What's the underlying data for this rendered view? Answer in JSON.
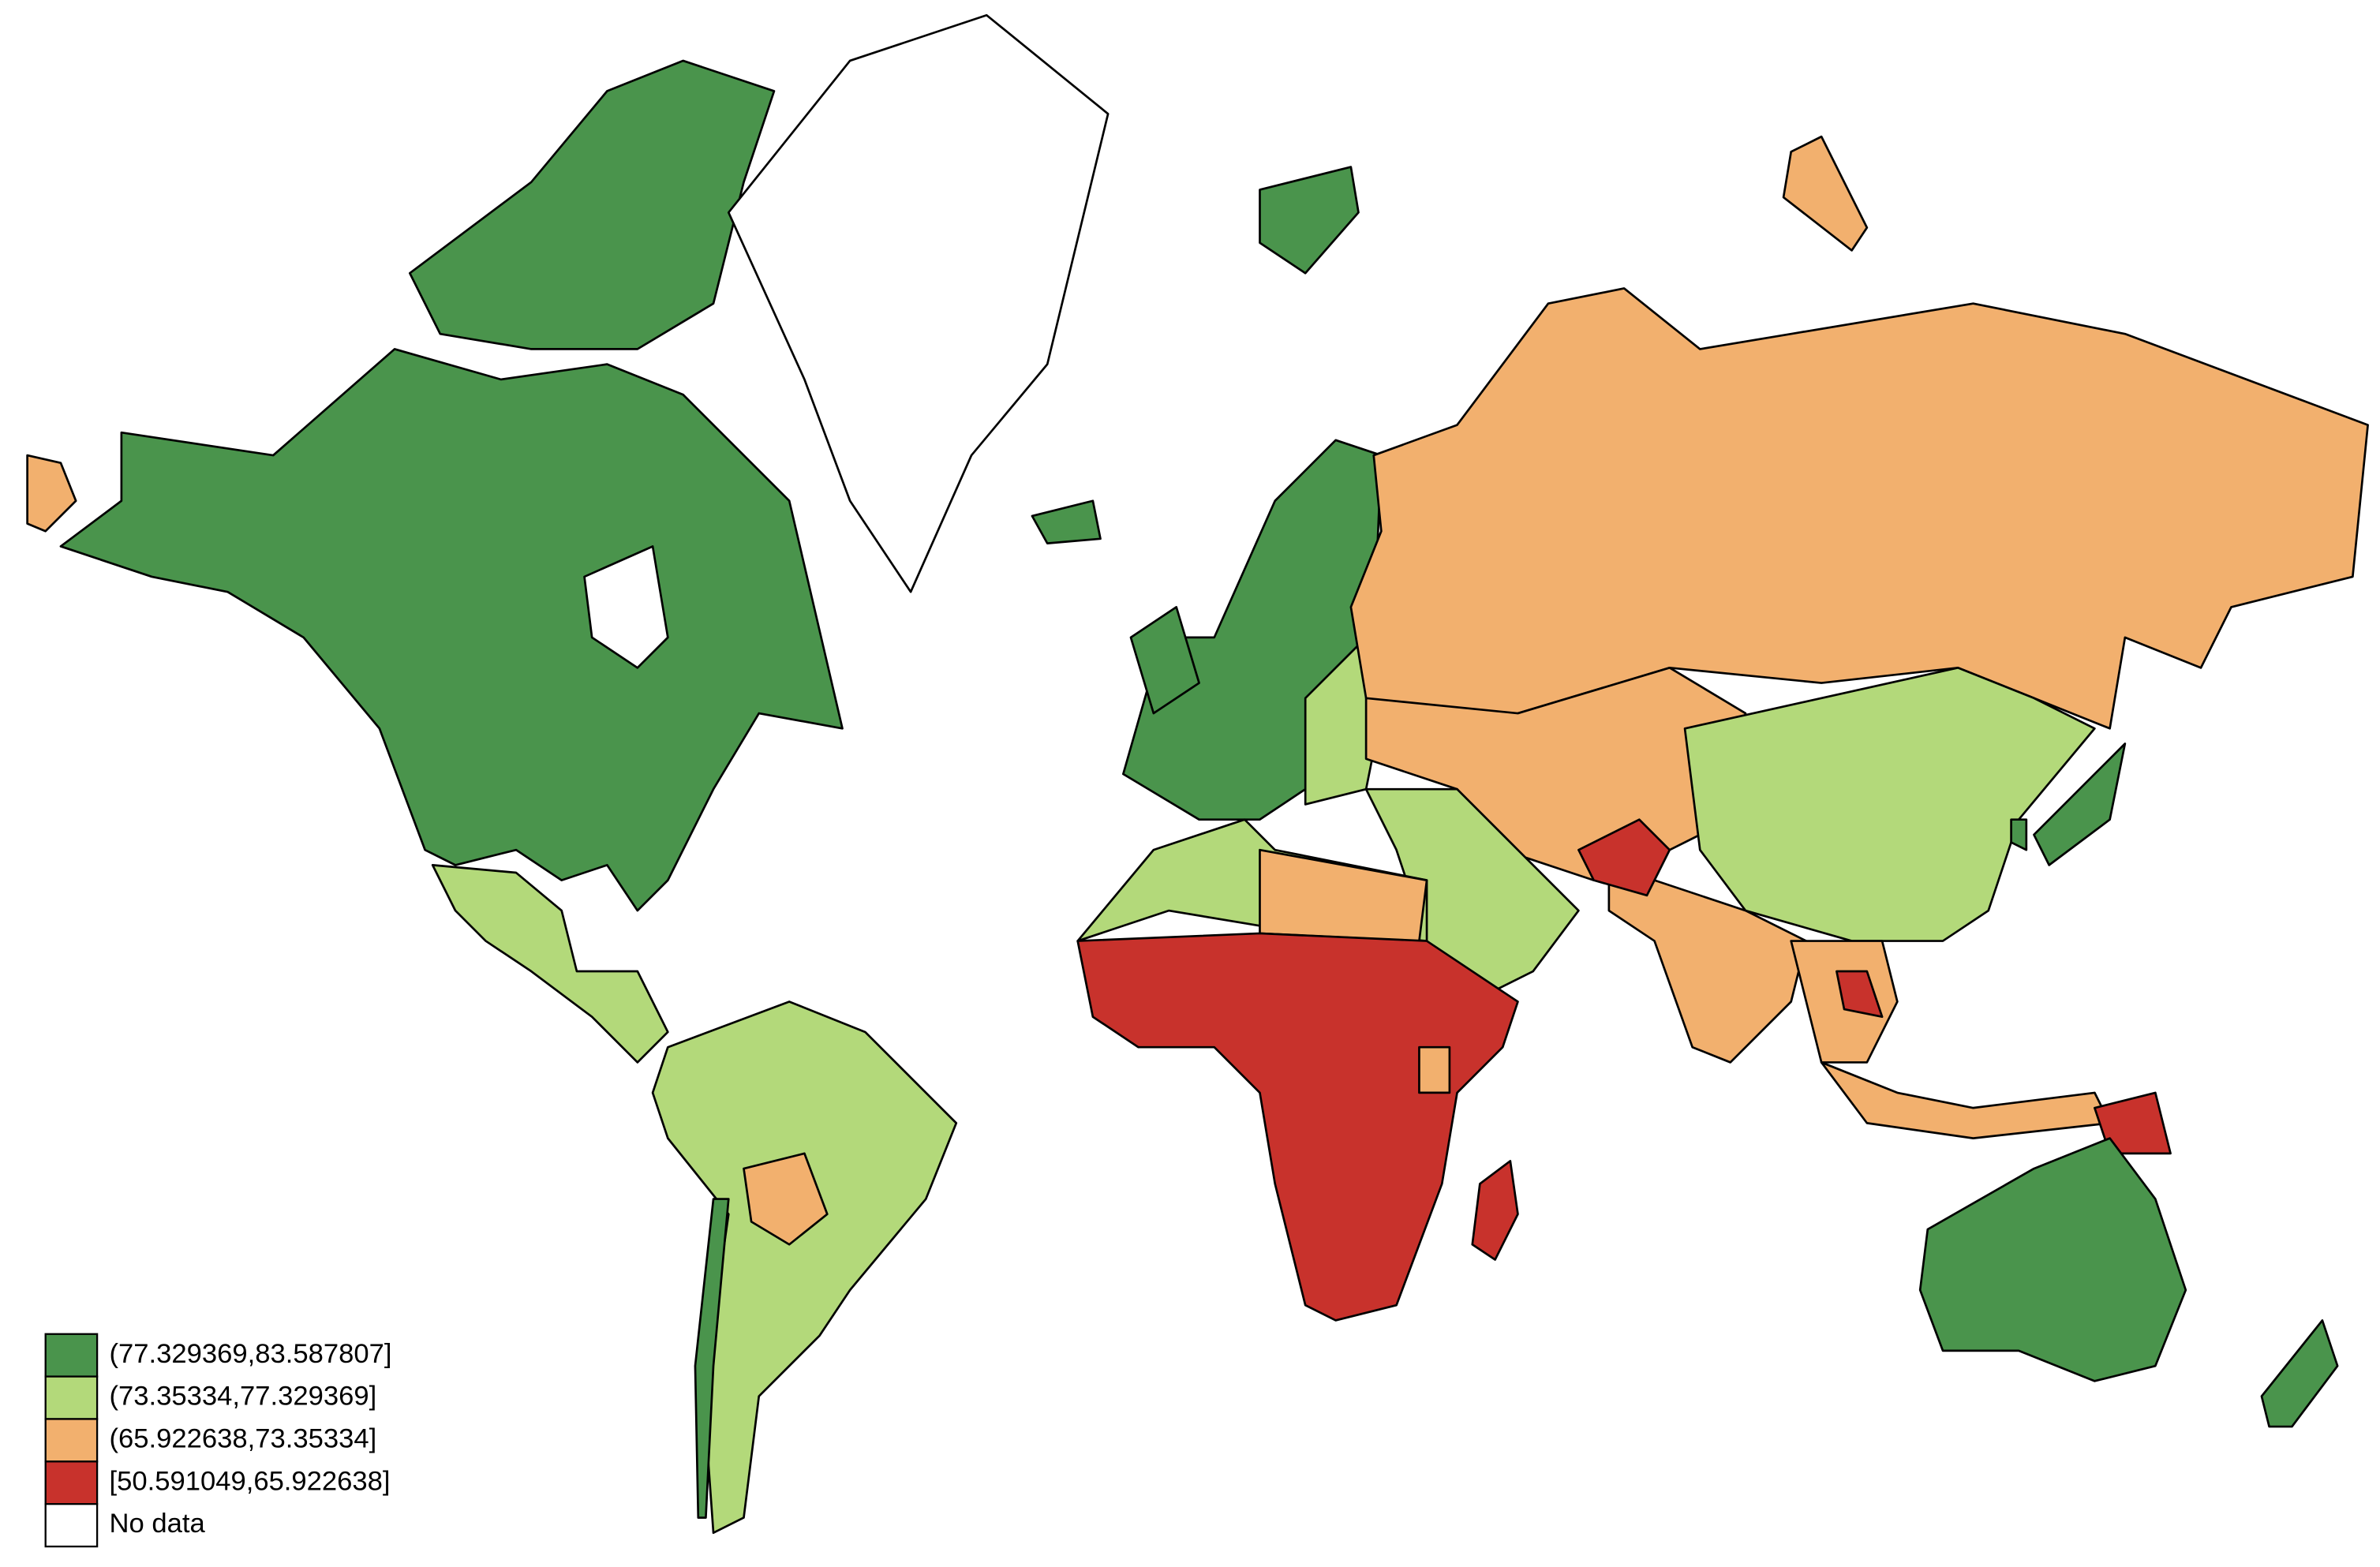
{
  "map": {
    "legend": {
      "items": [
        {
          "label": "(77.329369,83.587807]",
          "color": "#4a944c"
        },
        {
          "label": "(73.35334,77.329369]",
          "color": "#b3d97a"
        },
        {
          "label": "(65.922638,73.35334]",
          "color": "#f2b06e"
        },
        {
          "label": "[50.591049,65.922638]",
          "color": "#c8322c"
        },
        {
          "label": "No data",
          "color": "#ffffff"
        }
      ]
    }
  }
}
